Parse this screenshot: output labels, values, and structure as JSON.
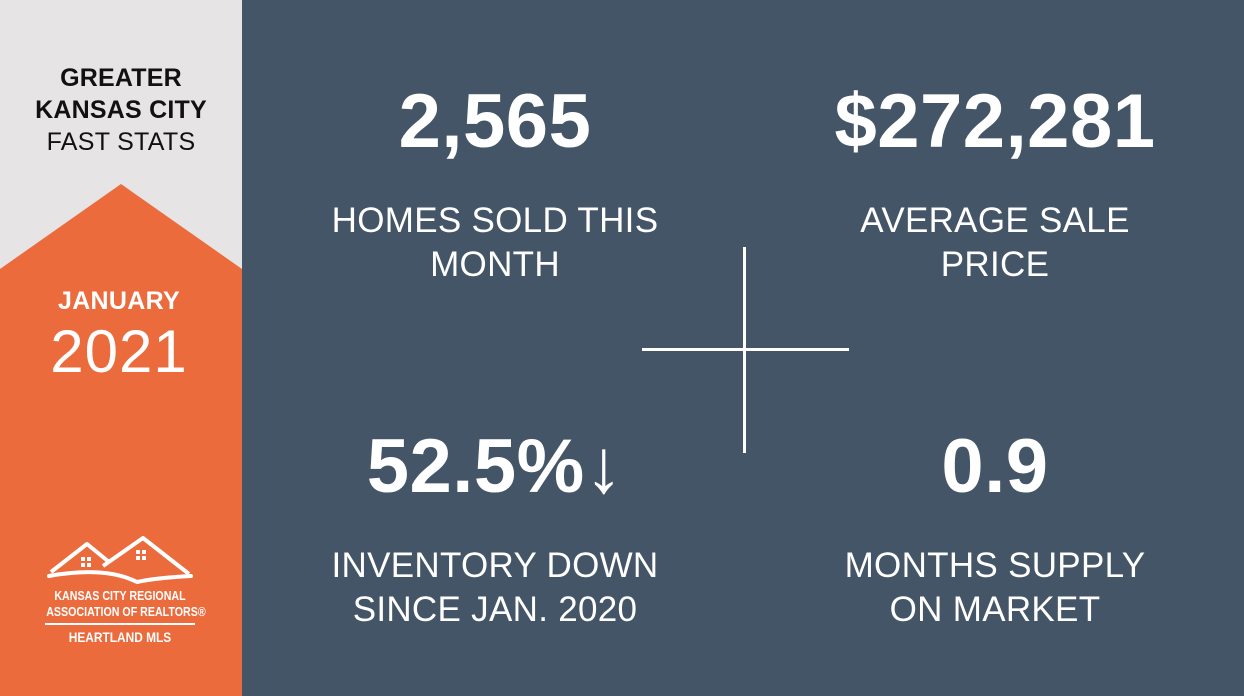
{
  "sidebar": {
    "title_line1": "GREATER",
    "title_line2": "KANSAS CITY",
    "title_line3": "FAST STATS",
    "month": "JANUARY",
    "year": "2021",
    "logo": {
      "icon": "houses-logo-icon",
      "line1": "KANSAS CITY REGIONAL",
      "line2": "ASSOCIATION OF REALTORS®",
      "line3": "HEARTLAND MLS"
    }
  },
  "stats": [
    {
      "value": "2,565",
      "label_line1": "HOMES SOLD THIS",
      "label_line2": "MONTH"
    },
    {
      "value": "$272,281",
      "label_line1": "AVERAGE SALE",
      "label_line2": "PRICE"
    },
    {
      "value": "52.5%↓",
      "label_line1": "INVENTORY DOWN",
      "label_line2": "SINCE JAN. 2020"
    },
    {
      "value": "0.9",
      "label_line1": "MONTHS SUPPLY",
      "label_line2": "ON MARKET"
    }
  ],
  "colors": {
    "main_bg": "#435566",
    "sidebar_bg": "#e6e4e5",
    "accent_orange": "#eb6b3d",
    "text_light": "#ffffff",
    "text_dark": "#111111"
  }
}
